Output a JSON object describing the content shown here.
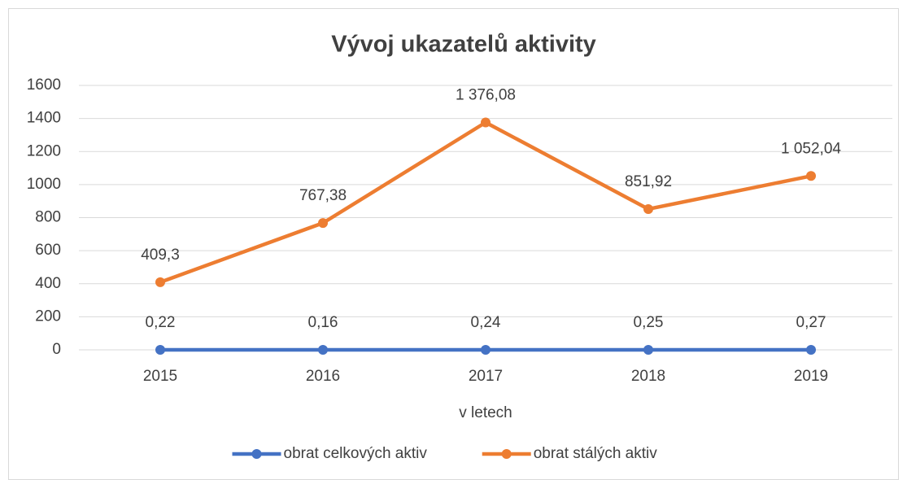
{
  "chart_data": {
    "type": "line",
    "title": "Vývoj ukazatelů aktivity",
    "x_label": "v letech",
    "categories": [
      "2015",
      "2016",
      "2017",
      "2018",
      "2019"
    ],
    "series": [
      {
        "name": "obrat celkových aktiv",
        "color": "#4472c4",
        "values": [
          0.22,
          0.16,
          0.24,
          0.25,
          0.27
        ],
        "value_labels": [
          "0,22",
          "0,16",
          "0,24",
          "0,25",
          "0,27"
        ]
      },
      {
        "name": "obrat stálých aktiv",
        "color": "#ed7d31",
        "values": [
          409.3,
          767.38,
          1376.08,
          851.92,
          1052.04
        ],
        "value_labels": [
          "409,3",
          "767,38",
          "1 376,08",
          "851,92",
          "1 052,04"
        ]
      }
    ],
    "ylim": [
      0,
      1600
    ],
    "yticks": [
      0,
      200,
      400,
      600,
      800,
      1000,
      1200,
      1400,
      1600
    ],
    "grid": true,
    "legend": "bottom"
  }
}
